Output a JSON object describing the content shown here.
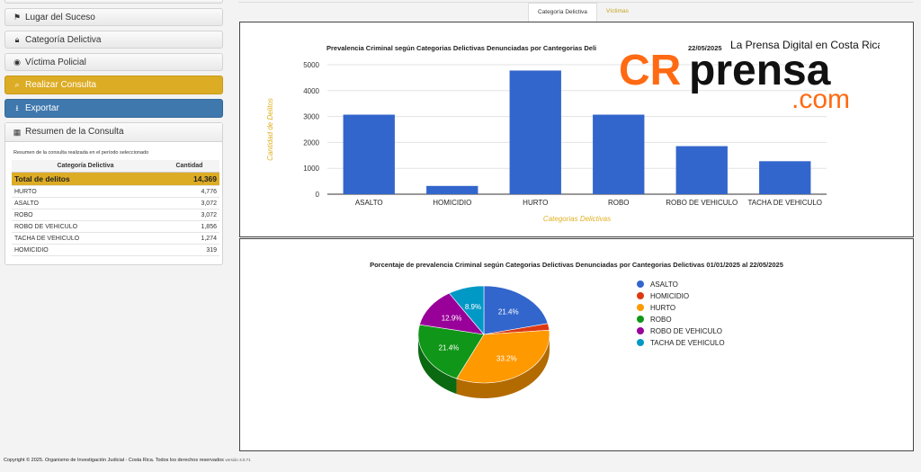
{
  "sidebar": {
    "lugar": "Lugar del Suceso",
    "categoria": "Categoría Delictiva",
    "victima": "Víctima Policial",
    "consulta": "Realizar Consulta",
    "exportar": "Exportar",
    "resumen_title": "Resumen de la Consulta",
    "resumen_desc": "Resumen de la consulta realizada en el período seleccionado",
    "col_categoria": "Categoría Delictiva",
    "col_cantidad": "Cantidad",
    "total_label": "Total de delitos",
    "total_value": "14,369",
    "rows": [
      {
        "label": "HURTO",
        "value": "4,776"
      },
      {
        "label": "ASALTO",
        "value": "3,072"
      },
      {
        "label": "ROBO",
        "value": "3,072"
      },
      {
        "label": "ROBO DE VEHICULO",
        "value": "1,856"
      },
      {
        "label": "TACHA DE VEHICULO",
        "value": "1,274"
      },
      {
        "label": "HOMICIDIO",
        "value": "319"
      }
    ]
  },
  "tabs": [
    {
      "label": "Categoría Delictiva",
      "active": true
    },
    {
      "label": "Víctimas",
      "active": false
    }
  ],
  "watermark": {
    "tagline": "La Prensa Digital en Costa Rica",
    "cr": "CR",
    "prensa": "prensa",
    "com": ".com"
  },
  "footer": {
    "copyright": "Copyright © 2025. Organismo de Investigación Judicial - Costa Rica. Todos los derechos reservados",
    "version": "versión 3.0.71"
  },
  "chart_data": [
    {
      "type": "bar",
      "title": "Prevalencia Criminal según Categorias Delictivas Denunciadas por Cantegorias Deli",
      "title_tail": "22/05/2025",
      "xlabel": "Categorias Delictivas",
      "ylabel": "Cantidad de Delitos",
      "ylim": [
        0,
        5000
      ],
      "yticks": [
        0,
        1000,
        2000,
        3000,
        4000,
        5000
      ],
      "categories": [
        "ASALTO",
        "HOMICIDIO",
        "HURTO",
        "ROBO",
        "ROBO DE VEHICULO",
        "TACHA DE VEHICULO"
      ],
      "values": [
        3072,
        319,
        4776,
        3072,
        1856,
        1274
      ],
      "color": "#3366cc",
      "grid": true
    },
    {
      "type": "pie",
      "title": "Porcentaje de prevalencia Criminal según Categorias Delictivas Denunciadas por Cantegorias Delictivas 01/01/2025 al 22/05/2025",
      "labels": [
        "ASALTO",
        "HOMICIDIO",
        "HURTO",
        "ROBO",
        "ROBO DE VEHICULO",
        "TACHA DE VEHICULO"
      ],
      "values": [
        3072,
        319,
        4776,
        3072,
        1856,
        1274
      ],
      "percent_labels": [
        "21.4%",
        "",
        "33.2%",
        "21.4%",
        "12.9%",
        "8.9%"
      ],
      "colors": [
        "#3366cc",
        "#dc3912",
        "#ff9900",
        "#109618",
        "#990099",
        "#0099c6"
      ],
      "legend": "right"
    }
  ]
}
